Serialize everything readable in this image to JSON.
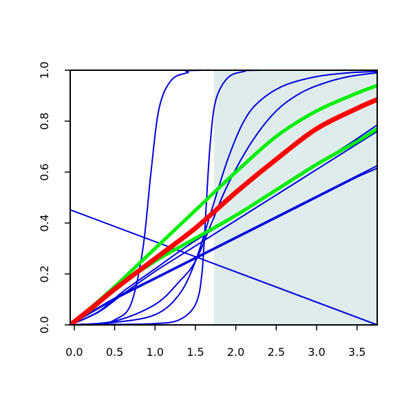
{
  "chart_data": {
    "type": "line",
    "title": "",
    "xlabel": "",
    "ylabel": "",
    "xlim": [
      -0.05,
      3.75
    ],
    "ylim": [
      0,
      1
    ],
    "x_ticks": [
      "0.0",
      "0.5",
      "1.0",
      "1.5",
      "2.0",
      "2.5",
      "3.0",
      "3.5"
    ],
    "y_ticks": [
      "0.0",
      "0.2",
      "0.4",
      "0.6",
      "0.8",
      "1.0"
    ],
    "shaded_region": {
      "x_from": 1.73,
      "x_to": 3.75,
      "color": "#dfecec"
    },
    "colors": {
      "blue": "#0000dd",
      "red": "#ff0000",
      "green": "#00ee00"
    },
    "series": [
      {
        "color": "blue",
        "width": 2,
        "points": [
          [
            -0.05,
            0.452
          ],
          [
            3.75,
            0.0
          ]
        ]
      },
      {
        "color": "blue",
        "width": 2,
        "points": [
          [
            -0.05,
            0.0
          ],
          [
            0.3,
            0.0
          ],
          [
            0.5,
            0.02
          ],
          [
            0.7,
            0.08
          ],
          [
            0.85,
            0.3
          ],
          [
            0.95,
            0.6
          ],
          [
            1.05,
            0.85
          ],
          [
            1.2,
            0.96
          ],
          [
            1.4,
            0.99
          ],
          [
            1.6,
            1.0
          ],
          [
            3.75,
            1.0
          ]
        ]
      },
      {
        "color": "blue",
        "width": 2,
        "points": [
          [
            -0.05,
            0.0
          ],
          [
            0.5,
            0.002
          ],
          [
            1.0,
            0.005
          ],
          [
            1.3,
            0.02
          ],
          [
            1.5,
            0.08
          ],
          [
            1.58,
            0.2
          ],
          [
            1.63,
            0.45
          ],
          [
            1.68,
            0.7
          ],
          [
            1.75,
            0.88
          ],
          [
            1.9,
            0.97
          ],
          [
            2.1,
            0.995
          ],
          [
            2.3,
            1.0
          ],
          [
            3.75,
            1.0
          ]
        ]
      },
      {
        "color": "blue",
        "width": 2,
        "points": [
          [
            -0.05,
            0.0
          ],
          [
            0.5,
            0.01
          ],
          [
            1.0,
            0.04
          ],
          [
            1.3,
            0.12
          ],
          [
            1.5,
            0.25
          ],
          [
            1.7,
            0.45
          ],
          [
            1.9,
            0.65
          ],
          [
            2.1,
            0.8
          ],
          [
            2.3,
            0.88
          ],
          [
            2.6,
            0.94
          ],
          [
            3.0,
            0.975
          ],
          [
            3.4,
            0.99
          ],
          [
            3.75,
            0.995
          ]
        ]
      },
      {
        "color": "blue",
        "width": 2,
        "points": [
          [
            -0.05,
            0.0
          ],
          [
            0.5,
            0.015
          ],
          [
            1.0,
            0.08
          ],
          [
            1.3,
            0.17
          ],
          [
            1.5,
            0.25
          ],
          [
            1.7,
            0.4
          ],
          [
            1.9,
            0.55
          ],
          [
            2.2,
            0.72
          ],
          [
            2.5,
            0.84
          ],
          [
            2.8,
            0.91
          ],
          [
            3.1,
            0.95
          ],
          [
            3.4,
            0.975
          ],
          [
            3.75,
            0.99
          ]
        ]
      },
      {
        "color": "blue",
        "width": 2,
        "points": [
          [
            -0.05,
            0.0
          ],
          [
            0.3,
            0.05
          ],
          [
            0.6,
            0.12
          ],
          [
            1.0,
            0.21
          ],
          [
            1.4,
            0.29
          ],
          [
            1.8,
            0.37
          ],
          [
            2.2,
            0.45
          ],
          [
            2.6,
            0.53
          ],
          [
            3.0,
            0.61
          ],
          [
            3.4,
            0.69
          ],
          [
            3.75,
            0.76
          ]
        ]
      },
      {
        "color": "blue",
        "width": 2,
        "points": [
          [
            -0.05,
            0.0
          ],
          [
            0.3,
            0.052
          ],
          [
            0.6,
            0.13
          ],
          [
            1.0,
            0.22
          ],
          [
            1.4,
            0.31
          ],
          [
            1.8,
            0.39
          ],
          [
            2.2,
            0.47
          ],
          [
            2.6,
            0.55
          ],
          [
            3.0,
            0.63
          ],
          [
            3.4,
            0.71
          ],
          [
            3.75,
            0.785
          ]
        ]
      },
      {
        "color": "blue",
        "width": 2,
        "points": [
          [
            -0.05,
            0.0
          ],
          [
            0.5,
            0.1
          ],
          [
            1.0,
            0.18
          ],
          [
            1.5,
            0.26
          ],
          [
            2.0,
            0.34
          ],
          [
            2.5,
            0.42
          ],
          [
            3.0,
            0.5
          ],
          [
            3.5,
            0.58
          ],
          [
            3.75,
            0.615
          ]
        ]
      },
      {
        "color": "blue",
        "width": 2,
        "points": [
          [
            -0.05,
            0.0
          ],
          [
            0.5,
            0.105
          ],
          [
            1.0,
            0.185
          ],
          [
            1.5,
            0.265
          ],
          [
            2.0,
            0.345
          ],
          [
            2.5,
            0.425
          ],
          [
            3.0,
            0.505
          ],
          [
            3.5,
            0.585
          ],
          [
            3.75,
            0.625
          ]
        ]
      },
      {
        "color": "green",
        "width": 5,
        "points": [
          [
            -0.05,
            0.0
          ],
          [
            0.25,
            0.07
          ],
          [
            0.5,
            0.14
          ],
          [
            1.0,
            0.25
          ],
          [
            1.5,
            0.34
          ],
          [
            2.0,
            0.43
          ],
          [
            2.5,
            0.53
          ],
          [
            3.0,
            0.63
          ],
          [
            3.5,
            0.72
          ],
          [
            3.75,
            0.77
          ]
        ]
      },
      {
        "color": "green",
        "width": 5,
        "points": [
          [
            -0.05,
            0.0
          ],
          [
            0.25,
            0.08
          ],
          [
            0.5,
            0.15
          ],
          [
            1.0,
            0.3
          ],
          [
            1.5,
            0.45
          ],
          [
            2.0,
            0.6
          ],
          [
            2.5,
            0.74
          ],
          [
            3.0,
            0.84
          ],
          [
            3.5,
            0.91
          ],
          [
            3.75,
            0.94
          ]
        ]
      },
      {
        "color": "red",
        "width": 7,
        "points": [
          [
            -0.05,
            0.0
          ],
          [
            0.25,
            0.075
          ],
          [
            0.5,
            0.14
          ],
          [
            1.0,
            0.26
          ],
          [
            1.5,
            0.38
          ],
          [
            2.0,
            0.52
          ],
          [
            2.5,
            0.65
          ],
          [
            3.0,
            0.77
          ],
          [
            3.5,
            0.85
          ],
          [
            3.75,
            0.885
          ]
        ]
      }
    ]
  }
}
